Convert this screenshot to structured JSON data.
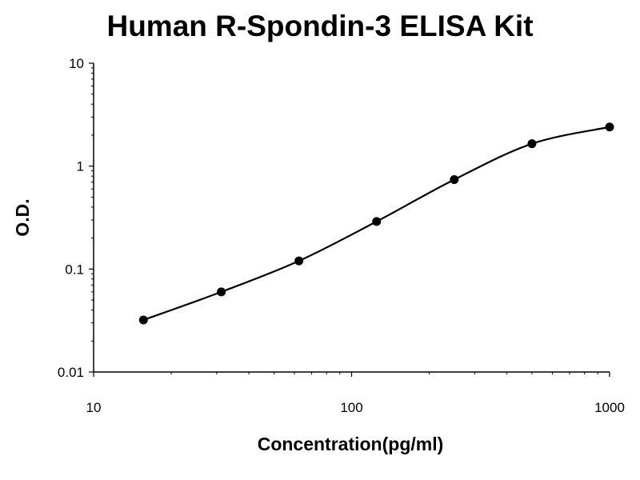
{
  "chart_data": {
    "type": "scatter",
    "title": "Human R-Spondin-3 ELISA Kit",
    "xlabel": "Concentration(pg/ml)",
    "ylabel": "O.D.",
    "x_scale": "log",
    "y_scale": "log",
    "xlim": [
      10,
      1000
    ],
    "ylim": [
      0.01,
      10
    ],
    "x_ticks": [
      "10",
      "100",
      "1000"
    ],
    "y_ticks": [
      "10",
      "1",
      "0.1",
      "0.01"
    ],
    "grid": false,
    "legend": "none",
    "series": [
      {
        "x": [
          15.6,
          31.25,
          62.5,
          125,
          250,
          500,
          1000
        ],
        "y": [
          0.032,
          0.06,
          0.12,
          0.29,
          0.74,
          1.65,
          2.4
        ],
        "color": "#000000",
        "marker": "circle",
        "fit_line": true
      }
    ]
  }
}
